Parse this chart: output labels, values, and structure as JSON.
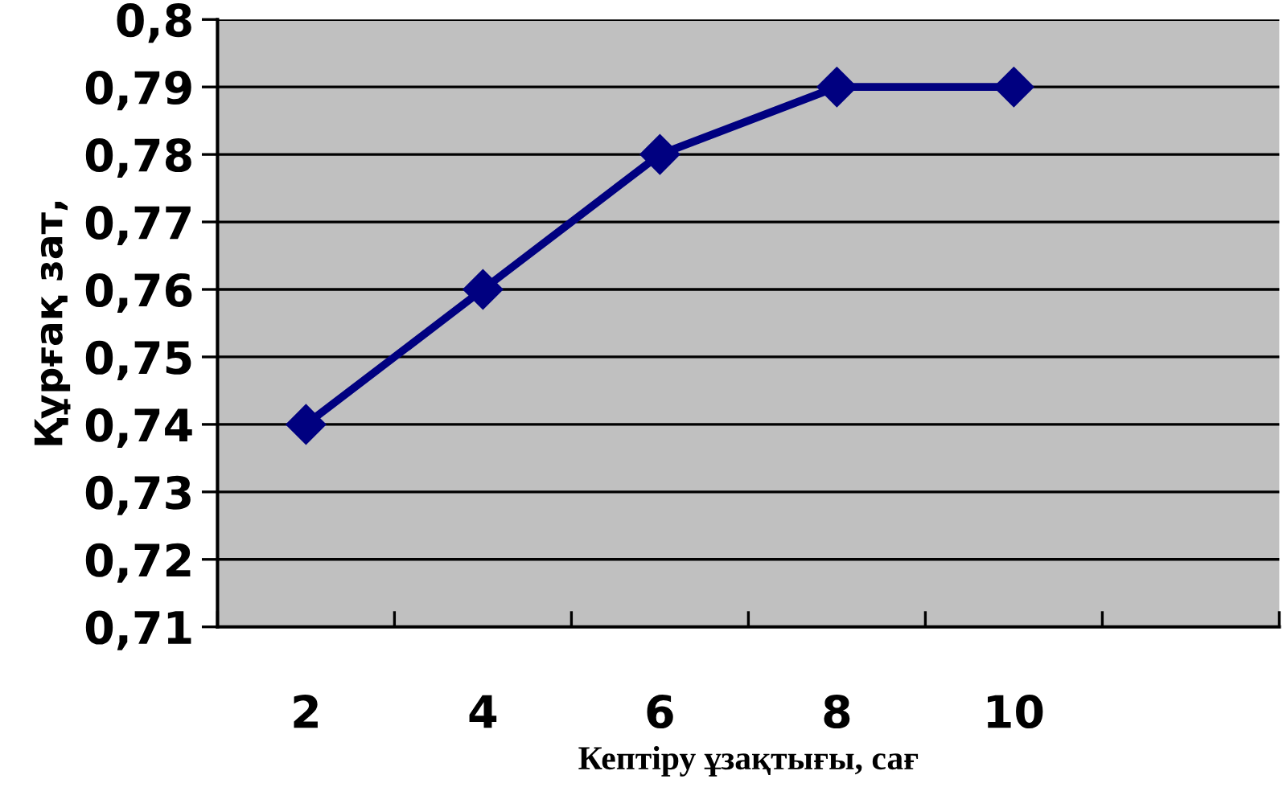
{
  "chart_data": {
    "type": "line",
    "categories": [
      "2",
      "4",
      "6",
      "8",
      "10",
      null
    ],
    "series": [
      {
        "color": "#000080",
        "values": [
          0.74,
          0.76,
          0.78,
          0.79,
          0.79,
          null
        ]
      }
    ],
    "xlabel": "Кептіру ұзақтығы, сағ",
    "ylabel": "Құрғақ зат,",
    "ylim": [
      0.71,
      0.8
    ],
    "yticks": [
      {
        "value": 0.71,
        "label": "0,71"
      },
      {
        "value": 0.72,
        "label": "0,72"
      },
      {
        "value": 0.73,
        "label": "0,73"
      },
      {
        "value": 0.74,
        "label": "0,74"
      },
      {
        "value": 0.75,
        "label": "0,75"
      },
      {
        "value": 0.76,
        "label": "0,76"
      },
      {
        "value": 0.77,
        "label": "0,77"
      },
      {
        "value": 0.78,
        "label": "0,78"
      },
      {
        "value": 0.79,
        "label": "0,79"
      },
      {
        "value": 0.8,
        "label": "0,8"
      }
    ],
    "grid": "y",
    "marker": "diamond",
    "line_style": "solid",
    "legend": false
  }
}
